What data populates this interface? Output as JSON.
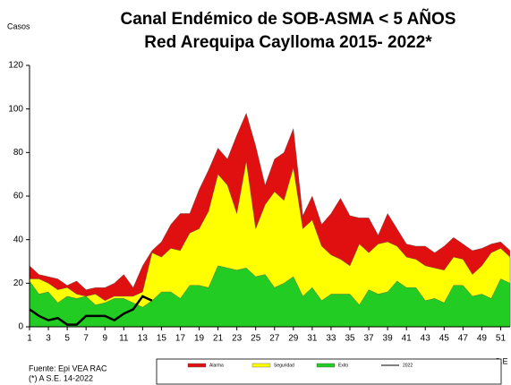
{
  "chart_data": {
    "type": "area",
    "title": "Canal Endémico de SOB-ASMA < 5 AÑOS",
    "subtitle": "Red Arequipa Caylloma 2015- 2022*",
    "y_label": "Casos",
    "x_label": "S.E",
    "notes": [
      "Fuente: Epi VEA RAC",
      "(*) A S.E. 14-2022"
    ],
    "x": [
      1,
      2,
      3,
      4,
      5,
      6,
      7,
      8,
      9,
      10,
      11,
      12,
      13,
      14,
      15,
      16,
      17,
      18,
      19,
      20,
      21,
      22,
      23,
      24,
      25,
      26,
      27,
      28,
      29,
      30,
      31,
      32,
      33,
      34,
      35,
      36,
      37,
      38,
      39,
      40,
      41,
      42,
      43,
      44,
      45,
      46,
      47,
      48,
      49,
      50,
      51,
      52
    ],
    "xlim": [
      1,
      52
    ],
    "xticks": [
      1,
      3,
      5,
      7,
      9,
      11,
      13,
      15,
      17,
      19,
      21,
      23,
      25,
      27,
      29,
      31,
      33,
      35,
      37,
      39,
      41,
      43,
      45,
      47,
      49,
      51
    ],
    "ylim": [
      0,
      120
    ],
    "yticks": [
      0,
      20,
      40,
      60,
      80,
      100,
      120
    ],
    "series": [
      {
        "name": "Alarma",
        "color": "#e01010",
        "kind": "area",
        "values": [
          28,
          24,
          23,
          22,
          19,
          21,
          17,
          18,
          18,
          20,
          24,
          18,
          28,
          35,
          39,
          47,
          52,
          52,
          63,
          72,
          82,
          77,
          88,
          98,
          83,
          65,
          77,
          80,
          91,
          51,
          60,
          47,
          52,
          59,
          51,
          50,
          50,
          42,
          52,
          45,
          38,
          37,
          37,
          34,
          37,
          41,
          38,
          35,
          36,
          38,
          39,
          35
        ]
      },
      {
        "name": "Seguridad",
        "color": "#ffff00",
        "kind": "area",
        "values": [
          22,
          22,
          20,
          17,
          18,
          15,
          14,
          15,
          12,
          14,
          14,
          14,
          16,
          34,
          32,
          36,
          35,
          43,
          45,
          53,
          70,
          65,
          52,
          76,
          45,
          56,
          62,
          58,
          73,
          45,
          49,
          37,
          33,
          31,
          28,
          38,
          34,
          38,
          39,
          37,
          32,
          31,
          28,
          27,
          26,
          32,
          31,
          24,
          28,
          34,
          36,
          32
        ]
      },
      {
        "name": "Exito",
        "color": "#22cc22",
        "kind": "area",
        "values": [
          21,
          15,
          16,
          11,
          14,
          13,
          14,
          10,
          11,
          13,
          13,
          11,
          9,
          12,
          16,
          16,
          13,
          19,
          19,
          18,
          28,
          27,
          26,
          27,
          23,
          24,
          18,
          20,
          23,
          14,
          18,
          12,
          15,
          15,
          15,
          10,
          17,
          15,
          16,
          21,
          18,
          18,
          12,
          13,
          11,
          19,
          19,
          14,
          15,
          13,
          22,
          20
        ]
      },
      {
        "name": "2022",
        "color": "#000000",
        "kind": "line",
        "values": [
          8,
          5,
          3,
          4,
          1,
          1,
          5,
          5,
          5,
          3,
          6,
          8,
          14,
          12,
          null,
          null,
          null,
          null,
          null,
          null,
          null,
          null,
          null,
          null,
          null,
          null,
          null,
          null,
          null,
          null,
          null,
          null,
          null,
          null,
          null,
          null,
          null,
          null,
          null,
          null,
          null,
          null,
          null,
          null,
          null,
          null,
          null,
          null,
          null,
          null,
          null,
          null
        ]
      }
    ]
  }
}
